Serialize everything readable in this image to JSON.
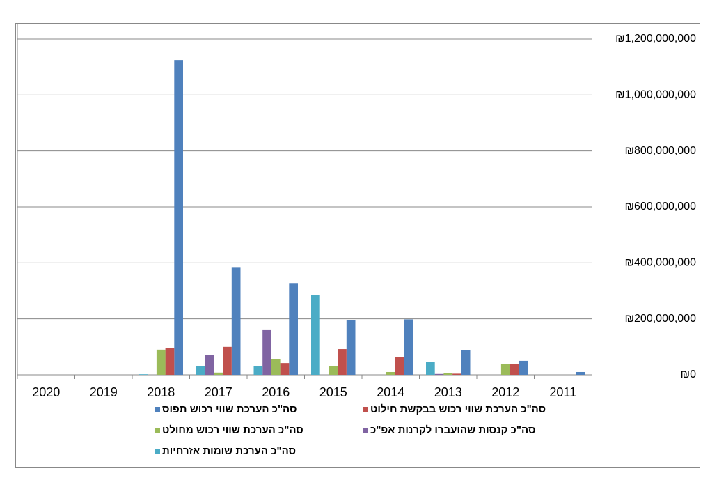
{
  "chart_data": {
    "type": "bar",
    "categories": [
      "2020",
      "2019",
      "2018",
      "2017",
      "2016",
      "2015",
      "2014",
      "2013",
      "2012",
      "2011"
    ],
    "series": [
      {
        "name": "סה\"כ הערכת שווי רכוש תפוס",
        "color": "#4f81bd",
        "values": [
          0,
          0,
          1125000000,
          385000000,
          328000000,
          195000000,
          198000000,
          88000000,
          50000000,
          10000000
        ]
      },
      {
        "name": "סה\"כ הערכת שווי רכוש בבקשת חילוט",
        "color": "#c0504d",
        "values": [
          0,
          0,
          95000000,
          100000000,
          42000000,
          92000000,
          63000000,
          4000000,
          38000000,
          0
        ]
      },
      {
        "name": "סה\"כ הערכת שווי רכוש מחולט",
        "color": "#9bbb59",
        "values": [
          0,
          0,
          90000000,
          8000000,
          55000000,
          32000000,
          10000000,
          6000000,
          38000000,
          0
        ]
      },
      {
        "name": "סה\"כ קנסות שהועברו לקרנות אפ\"כ",
        "color": "#8064a2",
        "values": [
          0,
          0,
          0,
          72000000,
          162000000,
          0,
          0,
          3000000,
          0,
          0
        ]
      },
      {
        "name": "סה\"כ הערכת שומות אזרחיות",
        "color": "#4bacc6",
        "values": [
          0,
          0,
          2000000,
          32000000,
          32000000,
          285000000,
          0,
          45000000,
          0,
          0
        ]
      }
    ],
    "ylim": [
      0,
      1200000000
    ],
    "yticks": [
      {
        "value": 0,
        "label": "₪0"
      },
      {
        "value": 200000000,
        "label": "₪200,000,000"
      },
      {
        "value": 400000000,
        "label": "₪400,000,000"
      },
      {
        "value": 600000000,
        "label": "₪600,000,000"
      },
      {
        "value": 800000000,
        "label": "₪800,000,000"
      },
      {
        "value": 1000000000,
        "label": "₪1,000,000,000"
      },
      {
        "value": 1200000000,
        "label": "₪1,200,000,000"
      }
    ],
    "grid": true,
    "x_reversed": true,
    "y_axis_side": "right",
    "legend": "bottom"
  }
}
